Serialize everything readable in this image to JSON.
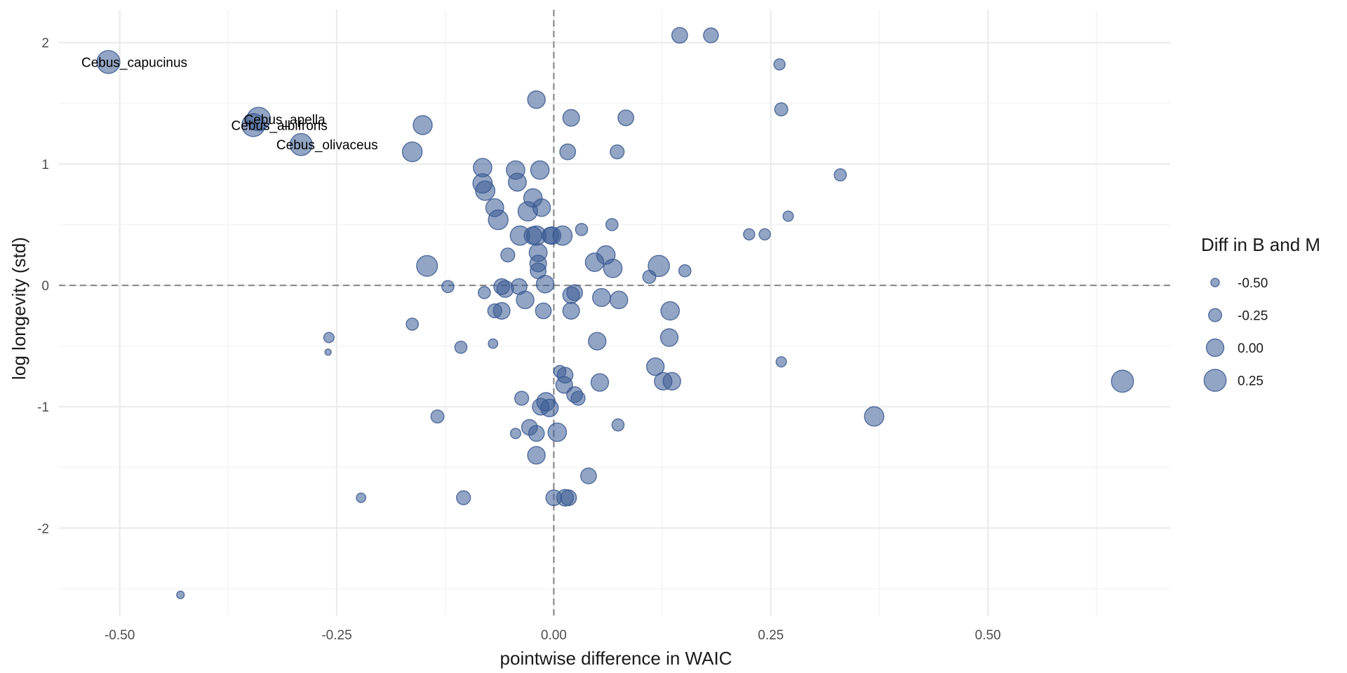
{
  "chart_data": {
    "type": "scatter",
    "xlabel": "pointwise difference in WAIC",
    "ylabel": "log longevity (std)",
    "xlim": [
      -0.57,
      0.71
    ],
    "ylim": [
      -2.72,
      2.27
    ],
    "x_ticks": [
      -0.5,
      -0.25,
      0,
      0.25,
      0.5
    ],
    "x_tick_labels": [
      "-0.50",
      "-0.25",
      "0.00",
      "0.25",
      "0.50"
    ],
    "y_ticks": [
      -2,
      -1,
      0,
      1,
      2
    ],
    "y_tick_labels": [
      "-2",
      "-1",
      "0",
      "1",
      "2"
    ],
    "grid": true,
    "reference_lines": {
      "x": 0,
      "y": 0,
      "style": "dashed"
    },
    "point_color": "#3B5B93",
    "point_opacity": 0.55,
    "size_range": [
      -0.62,
      0.35
    ],
    "legend": {
      "title": "Diff in B and M",
      "position": "right",
      "entries": [
        {
          "label": "-0.50",
          "value": -0.5
        },
        {
          "label": "-0.25",
          "value": -0.25
        },
        {
          "label": "0.00",
          "value": 0.0
        },
        {
          "label": "0.25",
          "value": 0.25
        }
      ]
    },
    "points": [
      {
        "x": -0.513,
        "y": 1.84,
        "s": 0.3,
        "label": "Cebus_capucinus"
      },
      {
        "x": -0.34,
        "y": 1.37,
        "s": 0.33,
        "label": "Cebus_apella"
      },
      {
        "x": -0.346,
        "y": 1.32,
        "s": 0.3,
        "label": "Cebus_albifrons"
      },
      {
        "x": -0.291,
        "y": 1.16,
        "s": 0.25,
        "label": "Cebus_olivaceus"
      },
      {
        "x": -0.151,
        "y": 1.32,
        "s": 0.08
      },
      {
        "x": -0.163,
        "y": 1.1,
        "s": 0.12
      },
      {
        "x": -0.146,
        "y": 0.16,
        "s": 0.18
      },
      {
        "x": -0.163,
        "y": -0.32,
        "s": -0.3
      },
      {
        "x": -0.259,
        "y": -0.43,
        "s": -0.4
      },
      {
        "x": -0.26,
        "y": -0.55,
        "s": -0.62
      },
      {
        "x": -0.134,
        "y": -1.08,
        "s": -0.25
      },
      {
        "x": -0.122,
        "y": -0.01,
        "s": -0.3
      },
      {
        "x": -0.107,
        "y": -0.51,
        "s": -0.3
      },
      {
        "x": -0.104,
        "y": -1.75,
        "s": -0.2
      },
      {
        "x": -0.222,
        "y": -1.75,
        "s": -0.45
      },
      {
        "x": -0.43,
        "y": -2.55,
        "s": -0.55
      },
      {
        "x": -0.082,
        "y": 0.97,
        "s": 0.05
      },
      {
        "x": -0.082,
        "y": 0.84,
        "s": 0.1
      },
      {
        "x": -0.079,
        "y": 0.78,
        "s": 0.1
      },
      {
        "x": -0.068,
        "y": 0.64,
        "s": 0.02
      },
      {
        "x": -0.064,
        "y": 0.54,
        "s": 0.12
      },
      {
        "x": -0.053,
        "y": 0.25,
        "s": -0.2
      },
      {
        "x": -0.08,
        "y": -0.06,
        "s": -0.3
      },
      {
        "x": -0.068,
        "y": -0.21,
        "s": -0.2
      },
      {
        "x": -0.06,
        "y": -0.21,
        "s": -0.05
      },
      {
        "x": -0.06,
        "y": -0.01,
        "s": -0.1
      },
      {
        "x": -0.056,
        "y": -0.03,
        "s": -0.05
      },
      {
        "x": -0.07,
        "y": -0.48,
        "s": -0.45
      },
      {
        "x": -0.044,
        "y": 0.95,
        "s": 0.05
      },
      {
        "x": -0.042,
        "y": 0.85,
        "s": 0.02
      },
      {
        "x": -0.039,
        "y": 0.41,
        "s": 0.1
      },
      {
        "x": -0.04,
        "y": -0.01,
        "s": -0.1
      },
      {
        "x": -0.033,
        "y": -0.12,
        "s": 0.0
      },
      {
        "x": -0.037,
        "y": -0.93,
        "s": -0.2
      },
      {
        "x": -0.044,
        "y": -1.22,
        "s": -0.4
      },
      {
        "x": -0.03,
        "y": 0.61,
        "s": 0.1
      },
      {
        "x": -0.024,
        "y": 0.72,
        "s": 0.05
      },
      {
        "x": -0.024,
        "y": 0.41,
        "s": 0.0
      },
      {
        "x": -0.028,
        "y": -1.17,
        "s": -0.1
      },
      {
        "x": -0.02,
        "y": 1.53,
        "s": 0.0
      },
      {
        "x": -0.02,
        "y": 0.41,
        "s": 0.1
      },
      {
        "x": -0.018,
        "y": 0.27,
        "s": 0.02
      },
      {
        "x": -0.018,
        "y": 0.18,
        "s": -0.05
      },
      {
        "x": -0.018,
        "y": 0.12,
        "s": -0.1
      },
      {
        "x": -0.02,
        "y": -1.22,
        "s": -0.1
      },
      {
        "x": -0.02,
        "y": -1.4,
        "s": 0.0
      },
      {
        "x": -0.016,
        "y": 0.95,
        "s": 0.05
      },
      {
        "x": -0.014,
        "y": 0.64,
        "s": 0.0
      },
      {
        "x": -0.012,
        "y": -0.21,
        "s": -0.1
      },
      {
        "x": -0.015,
        "y": -1.0,
        "s": -0.05
      },
      {
        "x": -0.009,
        "y": -0.96,
        "s": 0.05
      },
      {
        "x": -0.01,
        "y": 0.01,
        "s": 0.0
      },
      {
        "x": -0.005,
        "y": -1.01,
        "s": 0.0
      },
      {
        "x": -0.004,
        "y": 0.41,
        "s": -0.05
      },
      {
        "x": -0.002,
        "y": 0.41,
        "s": 0.0
      },
      {
        "x": 0.004,
        "y": -1.21,
        "s": 0.05
      },
      {
        "x": 0.0,
        "y": -1.75,
        "s": -0.1
      },
      {
        "x": 0.01,
        "y": 0.41,
        "s": 0.1
      },
      {
        "x": 0.007,
        "y": -0.71,
        "s": -0.3
      },
      {
        "x": 0.013,
        "y": -0.74,
        "s": -0.1
      },
      {
        "x": 0.012,
        "y": -0.82,
        "s": -0.05
      },
      {
        "x": 0.016,
        "y": 1.1,
        "s": -0.1
      },
      {
        "x": 0.013,
        "y": -1.75,
        "s": -0.05
      },
      {
        "x": 0.017,
        "y": -1.75,
        "s": -0.1
      },
      {
        "x": 0.02,
        "y": 1.38,
        "s": -0.05
      },
      {
        "x": 0.02,
        "y": -0.08,
        "s": -0.05
      },
      {
        "x": 0.02,
        "y": -0.21,
        "s": -0.05
      },
      {
        "x": 0.024,
        "y": -0.06,
        "s": -0.1
      },
      {
        "x": 0.024,
        "y": -0.9,
        "s": -0.1
      },
      {
        "x": 0.028,
        "y": -0.93,
        "s": -0.2
      },
      {
        "x": 0.032,
        "y": 0.46,
        "s": -0.3
      },
      {
        "x": 0.04,
        "y": -1.57,
        "s": -0.1
      },
      {
        "x": 0.05,
        "y": -0.46,
        "s": 0.0
      },
      {
        "x": 0.047,
        "y": 0.19,
        "s": 0.05
      },
      {
        "x": 0.053,
        "y": -0.8,
        "s": 0.0
      },
      {
        "x": 0.055,
        "y": -0.1,
        "s": 0.02
      },
      {
        "x": 0.06,
        "y": 0.25,
        "s": 0.05
      },
      {
        "x": 0.068,
        "y": 0.14,
        "s": 0.05
      },
      {
        "x": 0.067,
        "y": 0.5,
        "s": -0.3
      },
      {
        "x": 0.073,
        "y": 1.1,
        "s": -0.2
      },
      {
        "x": 0.075,
        "y": -0.12,
        "s": 0.0
      },
      {
        "x": 0.074,
        "y": -1.15,
        "s": -0.3
      },
      {
        "x": 0.083,
        "y": 1.38,
        "s": -0.1
      },
      {
        "x": 0.11,
        "y": 0.07,
        "s": -0.25
      },
      {
        "x": 0.117,
        "y": -0.67,
        "s": 0.0
      },
      {
        "x": 0.121,
        "y": 0.16,
        "s": 0.2
      },
      {
        "x": 0.126,
        "y": -0.79,
        "s": 0.0
      },
      {
        "x": 0.134,
        "y": -0.21,
        "s": 0.05
      },
      {
        "x": 0.133,
        "y": -0.43,
        "s": 0.0
      },
      {
        "x": 0.136,
        "y": -0.79,
        "s": 0.0
      },
      {
        "x": 0.145,
        "y": 2.06,
        "s": -0.1
      },
      {
        "x": 0.151,
        "y": 0.12,
        "s": -0.3
      },
      {
        "x": 0.181,
        "y": 2.06,
        "s": -0.15
      },
      {
        "x": 0.225,
        "y": 0.42,
        "s": -0.35
      },
      {
        "x": 0.243,
        "y": 0.42,
        "s": -0.35
      },
      {
        "x": 0.26,
        "y": 1.82,
        "s": -0.35
      },
      {
        "x": 0.262,
        "y": 1.45,
        "s": -0.25
      },
      {
        "x": 0.262,
        "y": -0.63,
        "s": -0.4
      },
      {
        "x": 0.27,
        "y": 0.57,
        "s": -0.4
      },
      {
        "x": 0.33,
        "y": 0.91,
        "s": -0.3
      },
      {
        "x": 0.369,
        "y": -1.08,
        "s": 0.1
      },
      {
        "x": 0.655,
        "y": -0.79,
        "s": 0.25
      }
    ]
  }
}
